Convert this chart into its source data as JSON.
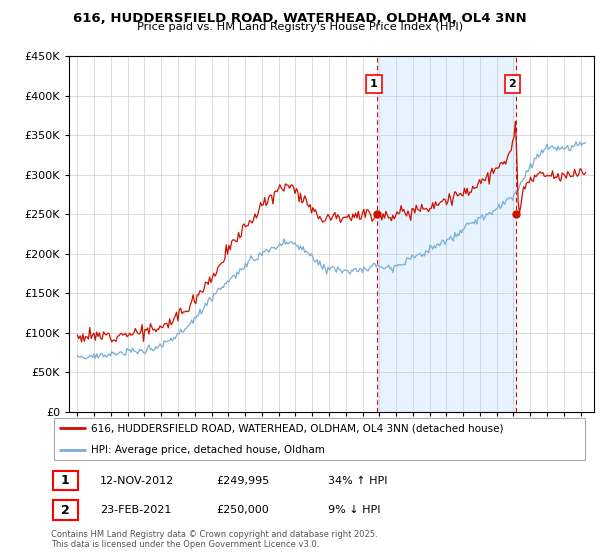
{
  "title_line1": "616, HUDDERSFIELD ROAD, WATERHEAD, OLDHAM, OL4 3NN",
  "title_line2": "Price paid vs. HM Land Registry's House Price Index (HPI)",
  "legend_label1": "616, HUDDERSFIELD ROAD, WATERHEAD, OLDHAM, OL4 3NN (detached house)",
  "legend_label2": "HPI: Average price, detached house, Oldham",
  "annotation1_date": "12-NOV-2012",
  "annotation1_price": 249995,
  "annotation1_text": "34% ↑ HPI",
  "annotation2_date": "23-FEB-2021",
  "annotation2_price": 250000,
  "annotation2_text": "9% ↓ HPI",
  "footer": "Contains HM Land Registry data © Crown copyright and database right 2025.\nThis data is licensed under the Open Government Licence v3.0.",
  "hpi_color": "#7aaed6",
  "price_color": "#cc1100",
  "vline_color": "#cc1100",
  "shade_color": "#ddeeff",
  "ylim_min": 0,
  "ylim_max": 450000,
  "background_color": "#ffffff"
}
